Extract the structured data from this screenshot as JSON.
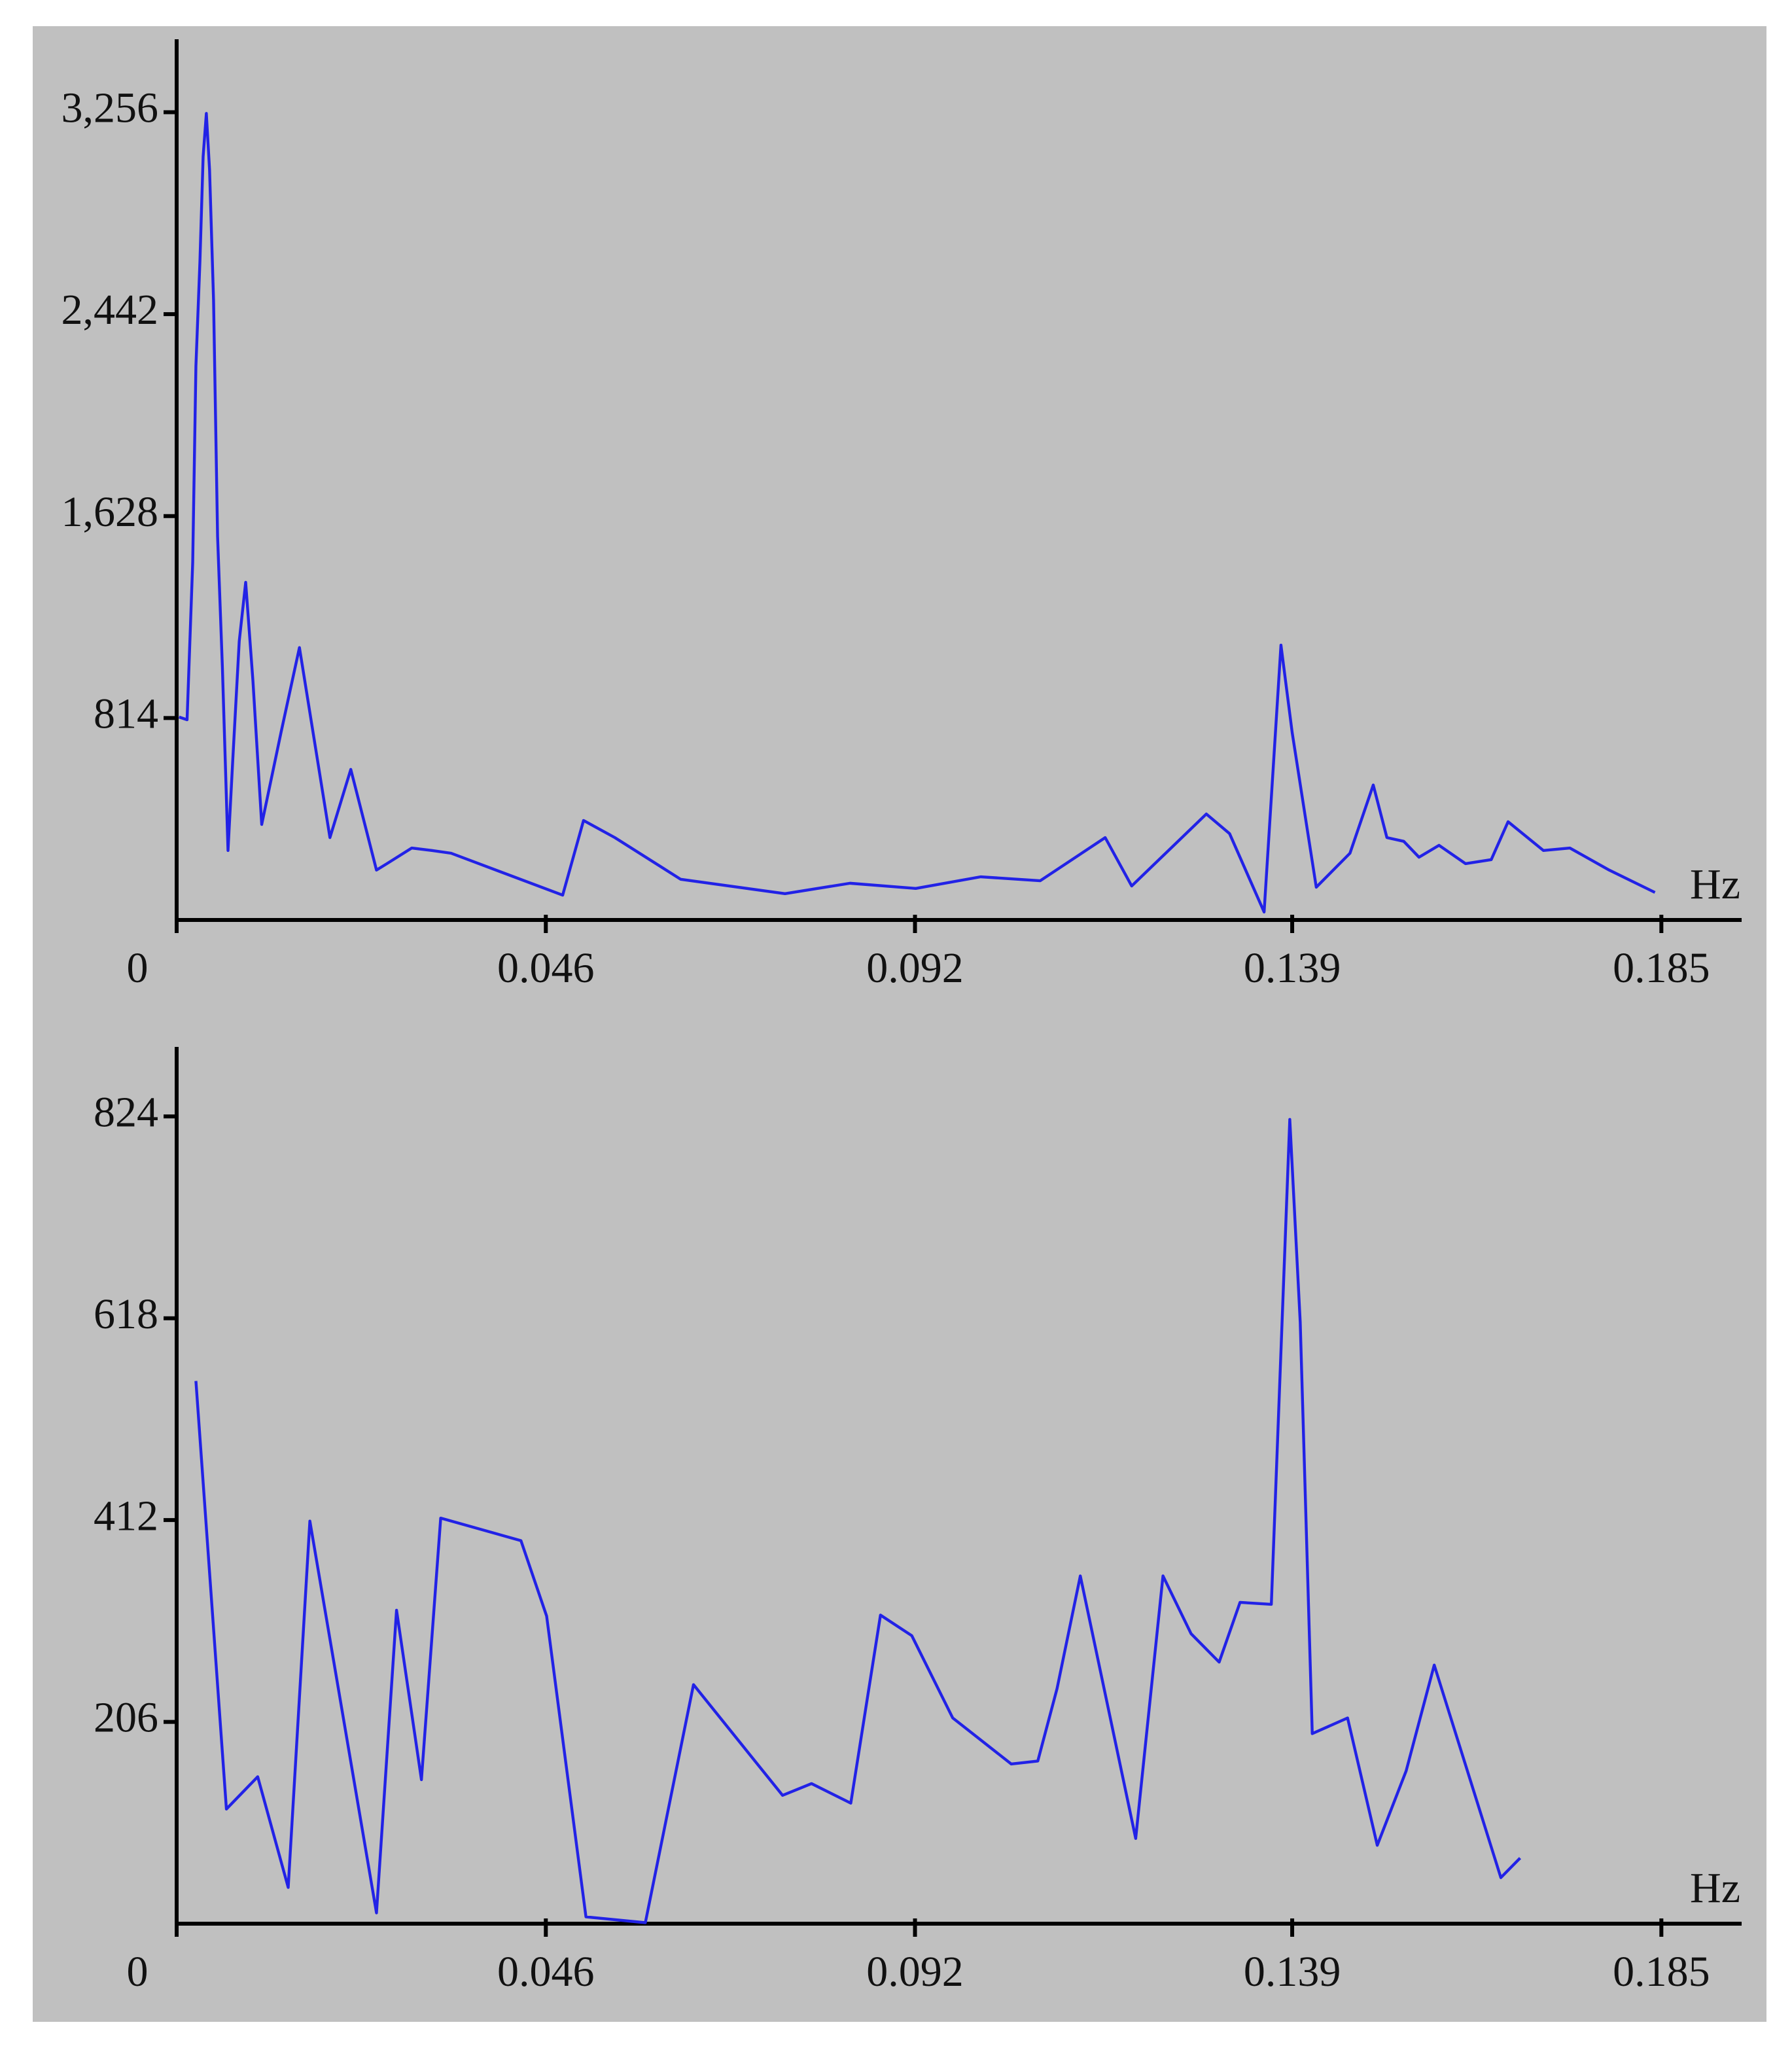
{
  "chart_data": [
    {
      "type": "line",
      "color": "#2222e6",
      "x": [
        0.0003,
        0.0013,
        0.002,
        0.0024,
        0.0029,
        0.0033,
        0.0037,
        0.0041,
        0.0046,
        0.0051,
        0.0057,
        0.0064,
        0.007,
        0.0078,
        0.0086,
        0.0095,
        0.0106,
        0.013,
        0.0153,
        0.0191,
        0.0217,
        0.0249,
        0.0262,
        0.0293,
        0.0318,
        0.0342,
        0.0481,
        0.0507,
        0.0546,
        0.0628,
        0.0758,
        0.0839,
        0.0921,
        0.1002,
        0.1076,
        0.1157,
        0.119,
        0.1283,
        0.1312,
        0.1355,
        0.1376,
        0.139,
        0.142,
        0.1462,
        0.1491,
        0.1508,
        0.1529,
        0.1548,
        0.1573,
        0.1606,
        0.1638,
        0.1659,
        0.1703,
        0.1736,
        0.1785,
        0.1842
      ],
      "values": [
        818,
        807,
        1441,
        2232,
        2654,
        3077,
        3251,
        3024,
        2496,
        1546,
        1018,
        280,
        649,
        1124,
        1361,
        966,
        385,
        755,
        1098,
        332,
        607,
        201,
        227,
        290,
        280,
        269,
        100,
        401,
        332,
        164,
        106,
        148,
        127,
        174,
        158,
        332,
        137,
        427,
        348,
        32,
        1108,
        755,
        132,
        269,
        544,
        332,
        317,
        253,
        301,
        227,
        243,
        396,
        280,
        290,
        201,
        111
      ],
      "xlim": [
        0,
        0.195
      ],
      "xticks": [
        0,
        0.046,
        0.092,
        0.139,
        0.185
      ],
      "ylim": [
        0,
        3550
      ],
      "yticks": [
        {
          "value": 814,
          "label": "814"
        },
        {
          "value": 1628,
          "label": "1,628"
        },
        {
          "value": 2442,
          "label": "2,442"
        },
        {
          "value": 3256,
          "label": "3,256"
        }
      ],
      "x_label": "Hz"
    },
    {
      "type": "line",
      "color": "#2222e6",
      "x": [
        0.0024,
        0.0062,
        0.0101,
        0.0139,
        0.0166,
        0.0249,
        0.0274,
        0.0305,
        0.0329,
        0.0429,
        0.0461,
        0.051,
        0.0584,
        0.0644,
        0.0755,
        0.0791,
        0.084,
        0.0877,
        0.0916,
        0.0967,
        0.104,
        0.1073,
        0.1097,
        0.1126,
        0.1195,
        0.1229,
        0.1264,
        0.1299,
        0.1325,
        0.1364,
        0.1387,
        0.14,
        0.1415,
        0.1459,
        0.1496,
        0.1532,
        0.1567,
        0.165,
        0.1674
      ],
      "values": [
        554,
        117,
        150,
        37,
        411,
        11,
        320,
        147,
        414,
        391,
        314,
        7,
        1,
        244,
        131,
        143,
        123,
        315,
        294,
        210,
        163,
        166,
        240,
        355,
        87,
        355,
        296,
        267,
        328,
        326,
        821,
        614,
        194,
        210,
        80,
        156,
        264,
        47,
        67
      ],
      "xlim": [
        0,
        0.195
      ],
      "xticks": [
        0,
        0.046,
        0.092,
        0.139,
        0.185
      ],
      "ylim": [
        0,
        895
      ],
      "yticks": [
        206,
        412,
        618,
        824
      ],
      "x_label": "Hz"
    }
  ]
}
